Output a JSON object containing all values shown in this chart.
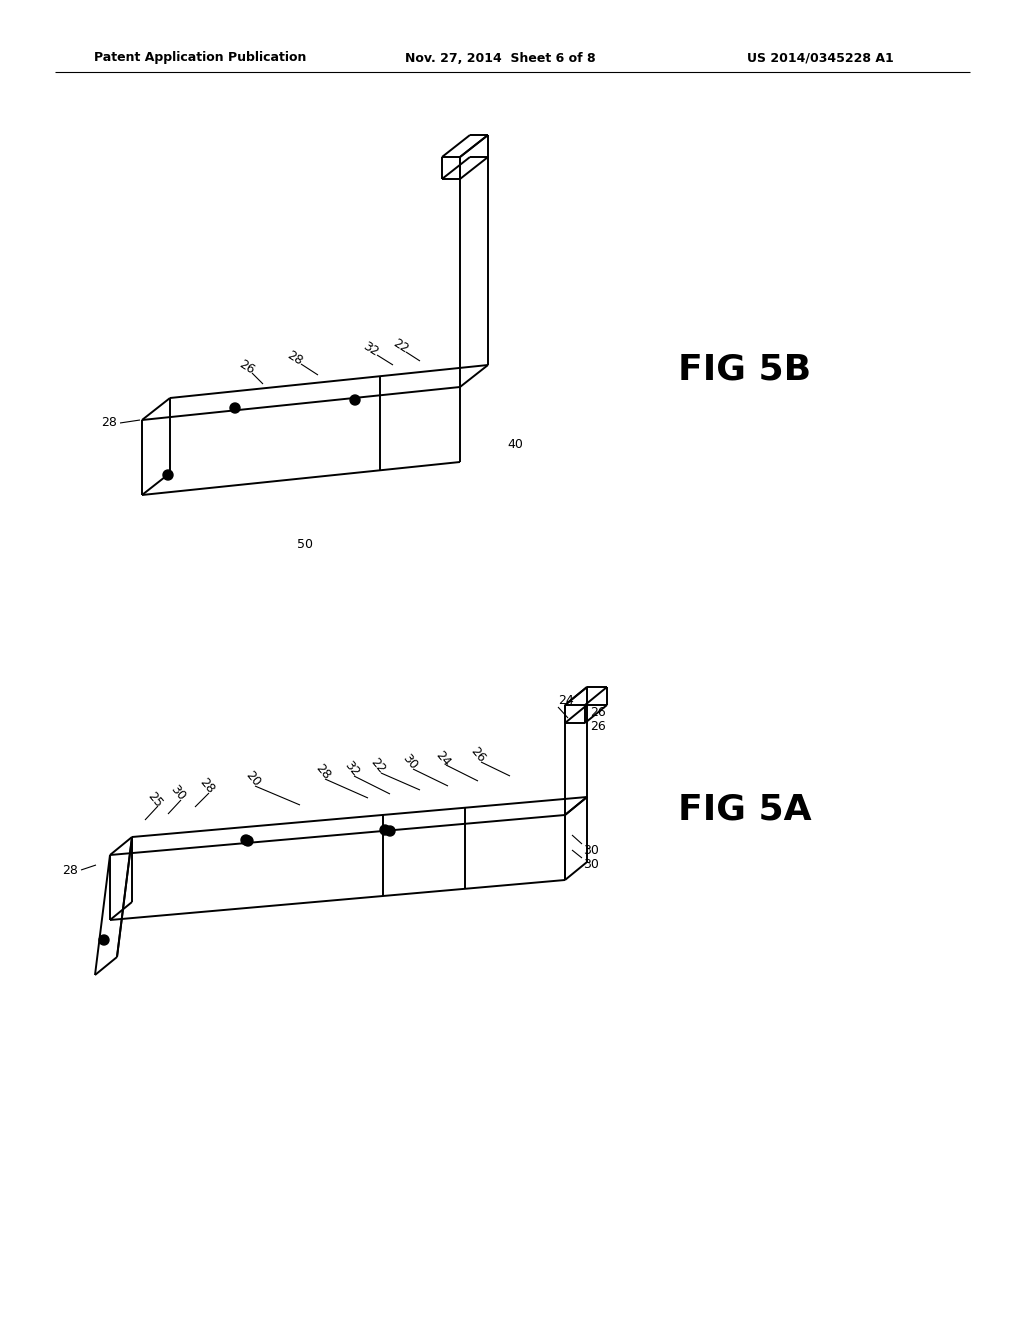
{
  "bg_color": "#ffffff",
  "header_left": "Patent Application Publication",
  "header_center": "Nov. 27, 2014  Sheet 6 of 8",
  "header_right": "US 2014/0345228 A1",
  "fig5b_label": "FIG 5B",
  "fig5a_label": "FIG 5A",
  "line_color": "#000000",
  "lw": 1.4,
  "tlw": 0.8
}
